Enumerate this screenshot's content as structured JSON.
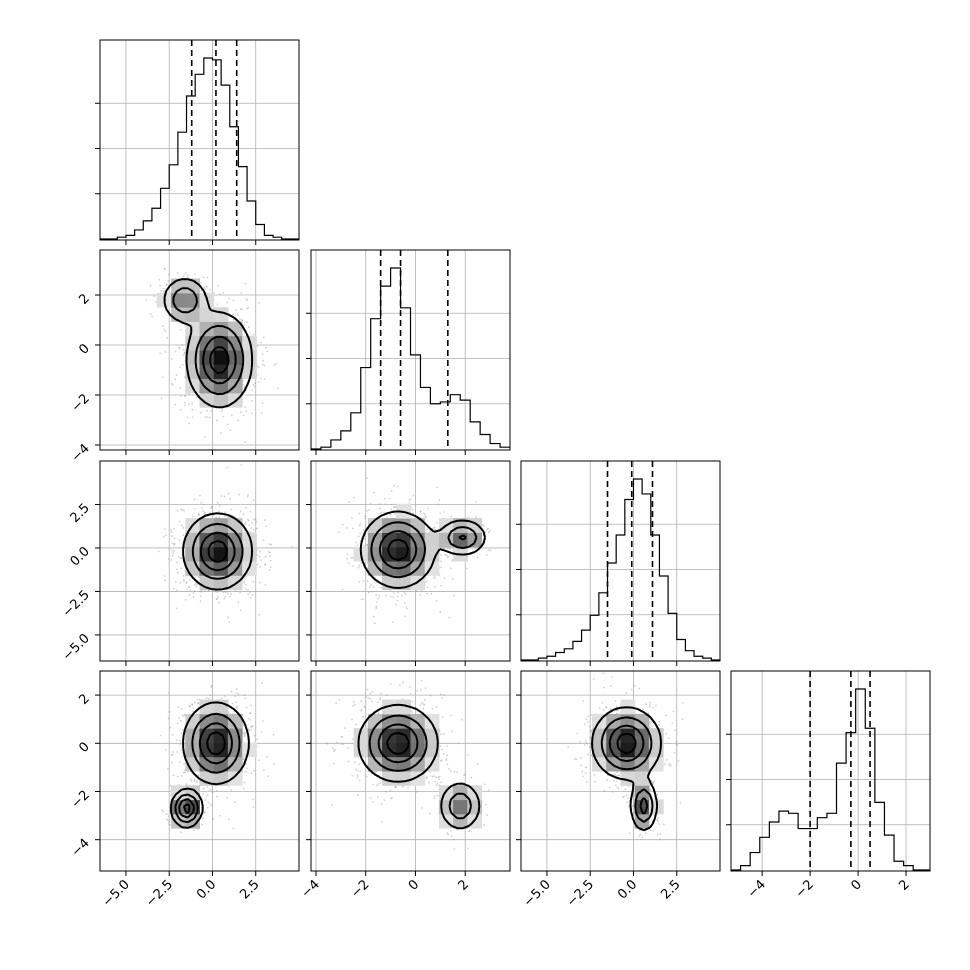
{
  "chart_data": {
    "type": "corner",
    "parameter_count": 4,
    "grid": true,
    "axis_ranges": [
      [
        -6.5,
        5.0
      ],
      [
        -4.2,
        3.8
      ],
      [
        -6.5,
        5.0
      ],
      [
        -5.3,
        3.0
      ]
    ],
    "tick_values": [
      [
        -5.0,
        -2.5,
        0.0,
        2.5
      ],
      [
        -4,
        -2,
        0,
        2
      ],
      [
        -5.0,
        -2.5,
        0.0,
        2.5
      ],
      [
        -4,
        -2,
        0,
        2
      ]
    ],
    "tick_labels": [
      [
        "−5.0",
        "−2.5",
        "0.0",
        "2.5"
      ],
      [
        "−4",
        "−2",
        "0",
        "2"
      ],
      [
        "−5.0",
        "−2.5",
        "0.0",
        "2.5"
      ],
      [
        "−4",
        "−2",
        "0",
        "2"
      ]
    ],
    "quantile_lines": [
      [
        -1.2,
        0.2,
        1.4
      ],
      [
        -1.4,
        -0.6,
        1.3
      ],
      [
        -1.5,
        -0.1,
        1.1
      ],
      [
        -2.0,
        -0.3,
        0.5
      ]
    ],
    "marginals": [
      {
        "bins": [
          -6.5,
          -6.0,
          -5.5,
          -5.0,
          -4.5,
          -4.0,
          -3.5,
          -3.0,
          -2.5,
          -2.0,
          -1.5,
          -1.0,
          -0.5,
          0.0,
          0.5,
          1.0,
          1.5,
          2.0,
          2.5,
          3.0,
          3.5,
          4.0,
          4.5,
          5.0
        ],
        "counts": [
          0,
          0,
          0.01,
          0.02,
          0.05,
          0.1,
          0.17,
          0.28,
          0.41,
          0.59,
          0.79,
          0.91,
          1.0,
          0.99,
          0.85,
          0.62,
          0.4,
          0.21,
          0.08,
          0.02,
          0.01,
          0,
          0
        ]
      },
      {
        "bins": [
          -4.2,
          -3.8,
          -3.4,
          -3.0,
          -2.6,
          -2.2,
          -1.8,
          -1.4,
          -1.0,
          -0.6,
          -0.2,
          0.2,
          0.6,
          1.0,
          1.4,
          1.8,
          2.2,
          2.6,
          3.0,
          3.4,
          3.8
        ],
        "counts": [
          0,
          0.01,
          0.05,
          0.1,
          0.2,
          0.45,
          0.72,
          0.9,
          1.0,
          0.78,
          0.52,
          0.34,
          0.25,
          0.26,
          0.3,
          0.27,
          0.15,
          0.08,
          0.03,
          0.01
        ]
      },
      {
        "bins": [
          -6.5,
          -6.0,
          -5.5,
          -5.0,
          -4.5,
          -4.0,
          -3.5,
          -3.0,
          -2.5,
          -2.0,
          -1.5,
          -1.0,
          -0.5,
          0.0,
          0.5,
          1.0,
          1.5,
          2.0,
          2.5,
          3.0,
          3.5,
          4.0,
          4.5,
          5.0
        ],
        "counts": [
          0,
          0,
          0.01,
          0.02,
          0.04,
          0.06,
          0.1,
          0.16,
          0.24,
          0.36,
          0.52,
          0.67,
          0.86,
          0.97,
          0.89,
          0.67,
          0.45,
          0.25,
          0.11,
          0.05,
          0.02,
          0.01,
          0
        ]
      },
      {
        "bins": [
          -5.3,
          -4.9,
          -4.5,
          -4.1,
          -3.7,
          -3.3,
          -2.9,
          -2.5,
          -2.1,
          -1.7,
          -1.3,
          -0.9,
          -0.5,
          -0.1,
          0.3,
          0.7,
          1.1,
          1.5,
          1.9,
          2.3,
          2.7,
          3.0
        ],
        "counts": [
          0,
          0.02,
          0.08,
          0.15,
          0.22,
          0.27,
          0.26,
          0.19,
          0.19,
          0.24,
          0.26,
          0.49,
          0.63,
          0.83,
          0.65,
          0.31,
          0.16,
          0.04,
          0.02,
          0,
          0
        ]
      }
    ],
    "joint_modes": [
      {
        "cell": "1-0",
        "modes": [
          {
            "x": 0.4,
            "y": -0.6,
            "sx": 0.95,
            "sy": 0.95,
            "w": 0.82
          },
          {
            "x": -1.6,
            "y": 1.8,
            "sx": 0.7,
            "sy": 0.5,
            "w": 0.18
          }
        ]
      },
      {
        "cell": "2-0",
        "modes": [
          {
            "x": 0.3,
            "y": -0.2,
            "sx": 1.0,
            "sy": 1.1,
            "w": 1.0
          }
        ]
      },
      {
        "cell": "2-1",
        "modes": [
          {
            "x": -0.7,
            "y": -0.1,
            "sx": 0.75,
            "sy": 1.1,
            "w": 0.82
          },
          {
            "x": 1.9,
            "y": 0.6,
            "sx": 0.5,
            "sy": 0.55,
            "w": 0.18
          }
        ]
      },
      {
        "cell": "3-0",
        "modes": [
          {
            "x": 0.2,
            "y": 0.0,
            "sx": 0.95,
            "sy": 0.85,
            "w": 0.82
          },
          {
            "x": -1.5,
            "y": -2.7,
            "sx": 0.45,
            "sy": 0.4,
            "w": 0.18
          }
        ]
      },
      {
        "cell": "3-1",
        "modes": [
          {
            "x": -0.7,
            "y": 0.0,
            "sx": 0.8,
            "sy": 0.8,
            "w": 0.82
          },
          {
            "x": 1.8,
            "y": -2.6,
            "sx": 0.45,
            "sy": 0.55,
            "w": 0.18
          }
        ]
      },
      {
        "cell": "3-2",
        "modes": [
          {
            "x": -0.4,
            "y": 0.0,
            "sx": 1.0,
            "sy": 0.75,
            "w": 0.82
          },
          {
            "x": 0.6,
            "y": -2.6,
            "sx": 0.4,
            "sy": 0.55,
            "w": 0.18
          }
        ]
      }
    ]
  }
}
